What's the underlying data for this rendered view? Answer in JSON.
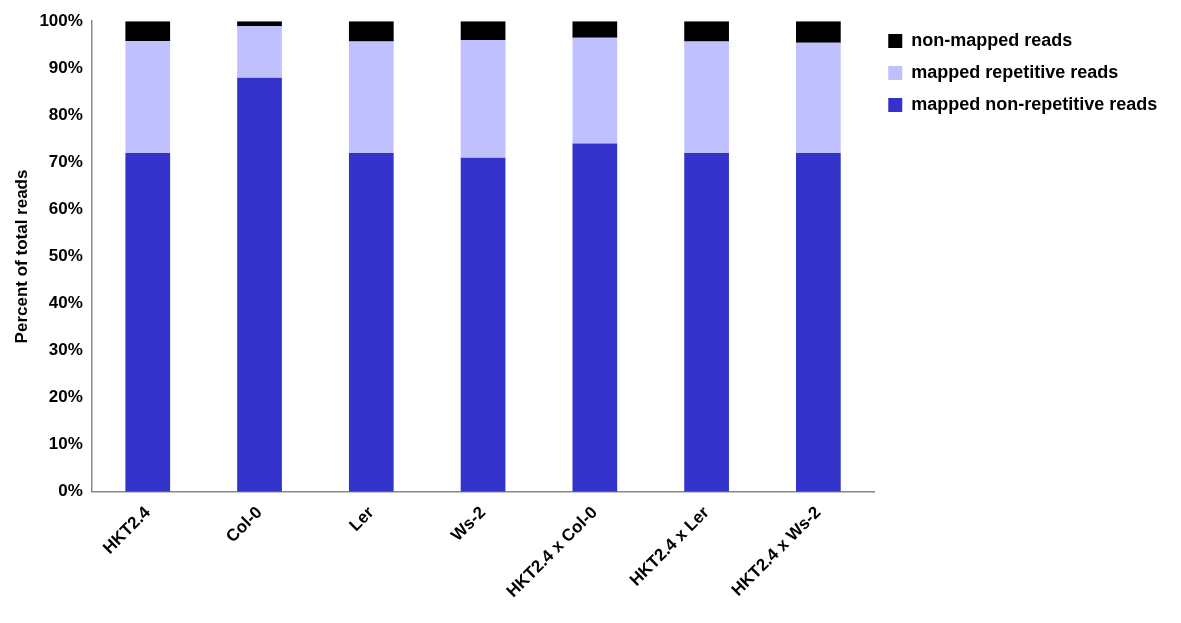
{
  "chart_data": {
    "type": "bar",
    "stacked": true,
    "ylabel": "Percent of total reads",
    "categories": [
      "HKT2.4",
      "Col-0",
      "Ler",
      "Ws-2",
      "HKT2.4 x Col-0",
      "HKT2.4 x Ler",
      "HKT2.4 x Ws-2"
    ],
    "series": [
      {
        "name": "mapped non-repetitive reads",
        "color": "#3333cc",
        "values": [
          72,
          88,
          72,
          71,
          74,
          72,
          72
        ]
      },
      {
        "name": "mapped repetitive reads",
        "color": "#c0c0ff",
        "values": [
          23.8,
          11,
          23.7,
          25,
          22.5,
          23.7,
          23.4
        ]
      },
      {
        "name": "non-mapped reads",
        "color": "#000000",
        "values": [
          4.2,
          1,
          4.3,
          4,
          3.5,
          4.3,
          4.6
        ]
      }
    ],
    "ylim": [
      0,
      100
    ],
    "yticks": [
      {
        "value": 0,
        "label": "0%"
      },
      {
        "value": 10,
        "label": "10%"
      },
      {
        "value": 20,
        "label": "20%"
      },
      {
        "value": 30,
        "label": "30%"
      },
      {
        "value": 40,
        "label": "40%"
      },
      {
        "value": 50,
        "label": "50%"
      },
      {
        "value": 60,
        "label": "60%"
      },
      {
        "value": 70,
        "label": "70%"
      },
      {
        "value": 80,
        "label": "80%"
      },
      {
        "value": 90,
        "label": "90%"
      },
      {
        "value": 100,
        "label": "100%"
      }
    ],
    "grid": false,
    "legend": "top right"
  }
}
